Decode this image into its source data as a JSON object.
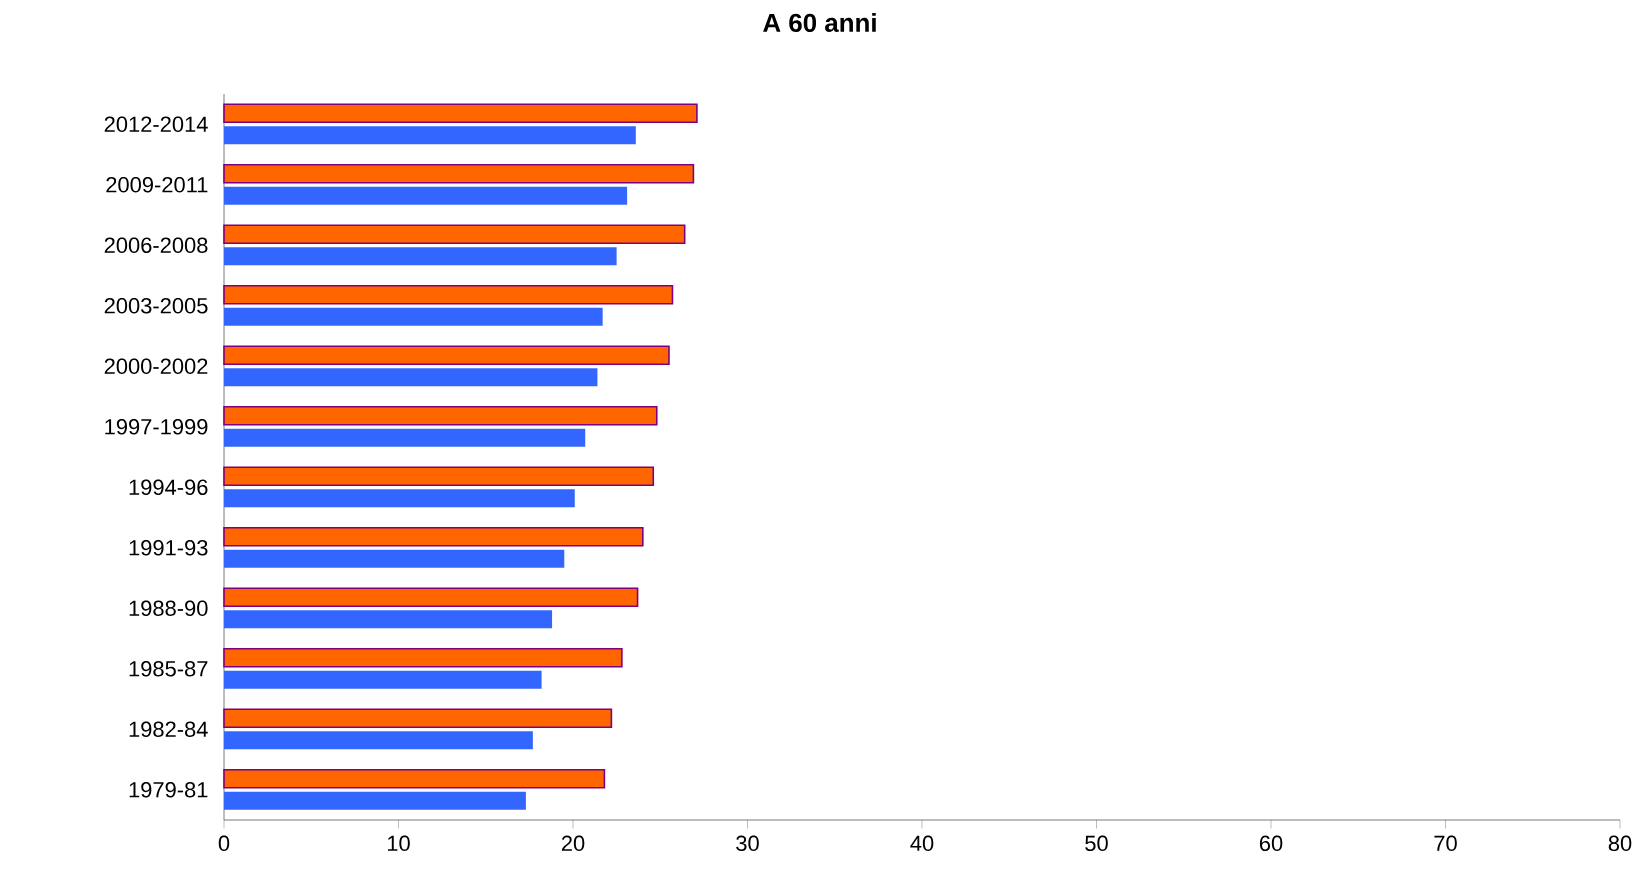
{
  "chart_data": {
    "type": "bar",
    "orientation": "horizontal",
    "title": "A 60 anni",
    "categories": [
      "2012-2014",
      "2009-2011",
      "2006-2008",
      "2003-2005",
      "2000-2002",
      "1997-1999",
      "1994-96",
      "1991-93",
      "1988-90",
      "1985-87",
      "1982-84",
      "1979-81"
    ],
    "series": [
      {
        "color": "#ff6600",
        "values": [
          27.1,
          26.9,
          26.4,
          25.7,
          25.5,
          24.8,
          24.6,
          24.0,
          23.7,
          22.8,
          22.2,
          21.8
        ]
      },
      {
        "color": "#3366ff",
        "values": [
          23.6,
          23.1,
          22.5,
          21.7,
          21.4,
          20.7,
          20.1,
          19.5,
          18.8,
          18.2,
          17.7,
          17.3
        ]
      }
    ],
    "xlim": [
      0,
      80
    ],
    "xticks": [
      0,
      10,
      20,
      30,
      40,
      50,
      60,
      70,
      80
    ],
    "grid": false
  }
}
